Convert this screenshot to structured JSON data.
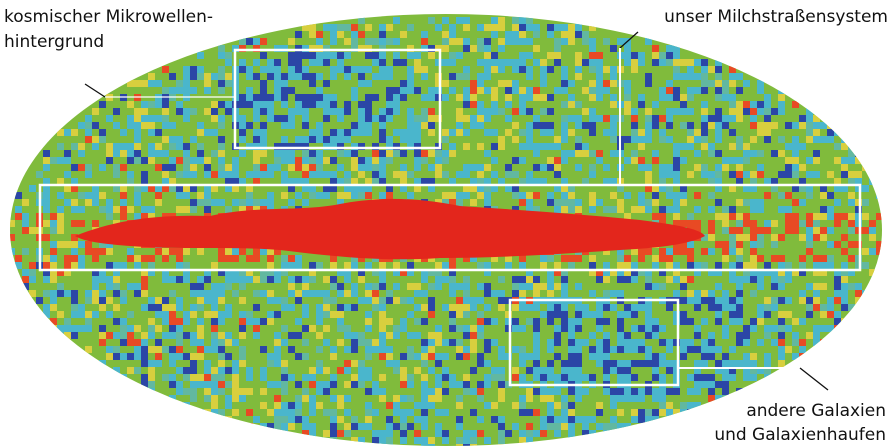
{
  "labels": [
    {
      "lines": [
        "kosmischer Mikrowellen-",
        "hintergrund"
      ]
    },
    {
      "lines": [
        "unser Milchstraßensystem"
      ]
    },
    {
      "lines": [
        "andere Galaxien",
        "und Galaxienhaufen"
      ]
    }
  ]
}
